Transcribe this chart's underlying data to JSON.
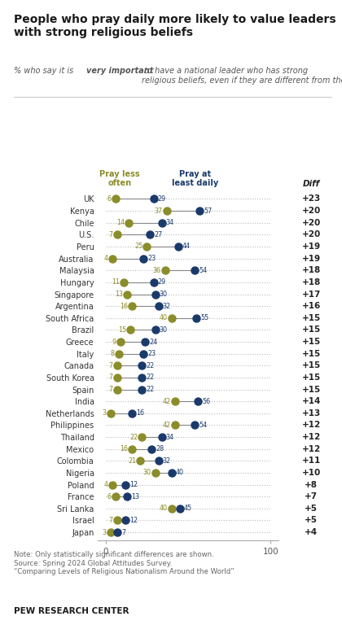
{
  "title": "People who pray daily more likely to value leaders\nwith strong religious beliefs",
  "col_header_left": "Pray less\noften",
  "col_header_right": "Pray at\nleast daily",
  "col_header_diff": "Diff",
  "countries": [
    "UK",
    "Kenya",
    "Chile",
    "U.S.",
    "Peru",
    "Australia",
    "Malaysia",
    "Hungary",
    "Singapore",
    "Argentina",
    "South Africa",
    "Brazil",
    "Greece",
    "Italy",
    "Canada",
    "South Korea",
    "Spain",
    "India",
    "Netherlands",
    "Philippines",
    "Thailand",
    "Mexico",
    "Colombia",
    "Nigeria",
    "Poland",
    "France",
    "Sri Lanka",
    "Israel",
    "Japan"
  ],
  "pray_less": [
    6,
    37,
    14,
    7,
    25,
    4,
    36,
    11,
    13,
    16,
    40,
    15,
    9,
    8,
    7,
    7,
    7,
    42,
    3,
    42,
    22,
    16,
    21,
    30,
    4,
    6,
    40,
    7,
    3
  ],
  "pray_daily": [
    29,
    57,
    34,
    27,
    44,
    23,
    54,
    29,
    30,
    32,
    55,
    30,
    24,
    23,
    22,
    22,
    22,
    56,
    16,
    54,
    34,
    28,
    32,
    40,
    12,
    13,
    45,
    12,
    7
  ],
  "diff": [
    23,
    20,
    20,
    20,
    19,
    19,
    18,
    18,
    17,
    16,
    15,
    15,
    15,
    15,
    15,
    15,
    15,
    14,
    13,
    12,
    12,
    12,
    11,
    10,
    8,
    7,
    5,
    5,
    4
  ],
  "color_less": "#8b8c2a",
  "color_daily": "#1a3a6b",
  "color_diff_bg": "#e8e0d0",
  "bg_color": "#ffffff",
  "note": "Note: Only statistically significant differences are shown.\nSource: Spring 2024 Global Attitudes Survey.\n“Comparing Levels of Religious Nationalism Around the World”",
  "footer": "PEW RESEARCH CENTER",
  "subtitle1": "% who say it is ",
  "subtitle_bold": "very important",
  "subtitle2": " to have a national leader who has strong\nreligious beliefs, even if they are different from their own, by religiousness"
}
